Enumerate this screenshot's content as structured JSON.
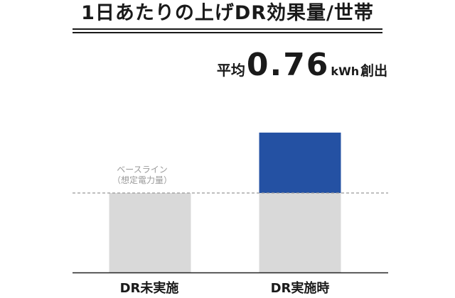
{
  "chart_data": {
    "type": "bar",
    "title": "1日あたりの上げDR効果量/世帯",
    "categories": [
      "DR未実施",
      "DR実施時"
    ],
    "series": [
      {
        "values": [
          1.0,
          1.0
        ],
        "color": "#d9d9d9"
      },
      {
        "values": [
          0.0,
          0.76
        ],
        "color": "#2451a3"
      }
    ],
    "stacked": true,
    "ylim": [
      0,
      1.8
    ],
    "grid": false,
    "baseline": {
      "value": 1.0,
      "label_line1": "ベースライン",
      "label_line2": "（想定電力量）",
      "line_color": "#999999"
    },
    "annotation": {
      "prefix": "平均",
      "value": "0.76",
      "unit": "kWh",
      "suffix": "創出"
    }
  }
}
